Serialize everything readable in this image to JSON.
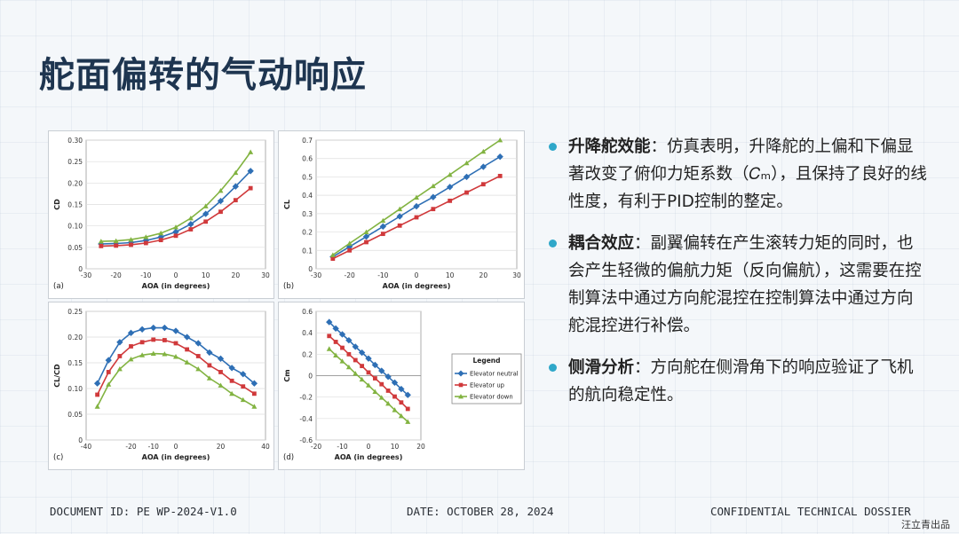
{
  "title": "舵面偏转的气动响应",
  "bullets": [
    {
      "head": "升降舵效能",
      "text": "：仿真表明，升降舵的上偏和下偏显著改变了俯仰力矩系数（𝐶ₘ），且保持了良好的线性度，有利于PID控制的整定。"
    },
    {
      "head": "耦合效应",
      "text": "：副翼偏转在产生滚转力矩的同时，也会产生轻微的偏航力矩（反向偏航），这需要在控制算法中通过方向舵混控在控制算法中通过方向舵混控进行补偿。"
    },
    {
      "head": "侧滑分析",
      "text": "：方向舵在侧滑角下的响应验证了飞机的航向稳定性。"
    }
  ],
  "footer": {
    "doc_id": "DOCUMENT ID: PE WP-2024-V1.0",
    "date": "DATE: OCTOBER 28, 2024",
    "confidential": "CONFIDENTIAL TECHNICAL DOSSIER"
  },
  "watermark": "汪立青出品",
  "colors": {
    "neutral": "#2e6fb5",
    "up": "#d0393b",
    "down": "#82b341",
    "bullet": "#2fa7c9"
  },
  "legend": {
    "title": "Legend",
    "items": [
      "Elevator neutral",
      "Elevator up",
      "Elevator down"
    ]
  },
  "chart_data": [
    {
      "type": "line",
      "panel_label": "(a)",
      "xlabel": "AOA (in degrees)",
      "ylabel": "CD",
      "xlim": [
        -30,
        30
      ],
      "ylim": [
        0,
        0.3
      ],
      "xticks": [
        -30,
        -20,
        -10,
        0,
        10,
        20,
        30
      ],
      "yticks": [
        0,
        0.05,
        0.1,
        0.15,
        0.2,
        0.25,
        0.3
      ],
      "x": [
        -25,
        -20,
        -15,
        -10,
        -5,
        0,
        5,
        10,
        15,
        20,
        25
      ],
      "series": [
        {
          "name": "Elevator neutral",
          "color": "#2e6fb5",
          "values": [
            0.058,
            0.059,
            0.061,
            0.066,
            0.074,
            0.086,
            0.104,
            0.128,
            0.158,
            0.192,
            0.228
          ]
        },
        {
          "name": "Elevator up",
          "color": "#d0393b",
          "values": [
            0.053,
            0.054,
            0.056,
            0.06,
            0.067,
            0.077,
            0.092,
            0.11,
            0.133,
            0.16,
            0.188
          ]
        },
        {
          "name": "Elevator down",
          "color": "#82b341",
          "values": [
            0.064,
            0.065,
            0.068,
            0.074,
            0.083,
            0.097,
            0.118,
            0.146,
            0.182,
            0.224,
            0.272
          ]
        }
      ]
    },
    {
      "type": "line",
      "panel_label": "(b)",
      "xlabel": "AOA (in degrees)",
      "ylabel": "CL",
      "xlim": [
        -30,
        30
      ],
      "ylim": [
        0,
        0.7
      ],
      "xticks": [
        -30,
        -20,
        -10,
        0,
        10,
        20,
        30
      ],
      "yticks": [
        0,
        0.1,
        0.2,
        0.3,
        0.4,
        0.5,
        0.6,
        0.7
      ],
      "x": [
        -25,
        -20,
        -15,
        -10,
        -5,
        0,
        5,
        10,
        15,
        20,
        25
      ],
      "series": [
        {
          "name": "Elevator neutral",
          "color": "#2e6fb5",
          "values": [
            0.065,
            0.12,
            0.175,
            0.23,
            0.285,
            0.34,
            0.39,
            0.445,
            0.5,
            0.555,
            0.61
          ]
        },
        {
          "name": "Elevator up",
          "color": "#d0393b",
          "values": [
            0.055,
            0.1,
            0.145,
            0.19,
            0.235,
            0.28,
            0.325,
            0.37,
            0.415,
            0.46,
            0.505
          ]
        },
        {
          "name": "Elevator down",
          "color": "#82b341",
          "values": [
            0.075,
            0.138,
            0.2,
            0.262,
            0.325,
            0.388,
            0.45,
            0.512,
            0.575,
            0.638,
            0.7
          ]
        }
      ]
    },
    {
      "type": "line",
      "panel_label": "(c)",
      "xlabel": "AOA (in degrees)",
      "ylabel": "CL/CD",
      "xlim": [
        -40,
        40
      ],
      "ylim": [
        0,
        0.25
      ],
      "xticks": [
        -40,
        -20,
        -10,
        0,
        20,
        40
      ],
      "yticks": [
        0,
        0.05,
        0.1,
        0.15,
        0.2,
        0.25
      ],
      "x": [
        -35,
        -30,
        -25,
        -20,
        -15,
        -10,
        -5,
        0,
        5,
        10,
        15,
        20,
        25,
        30,
        35
      ],
      "series": [
        {
          "name": "Elevator neutral",
          "color": "#2e6fb5",
          "values": [
            0.11,
            0.155,
            0.19,
            0.208,
            0.215,
            0.218,
            0.218,
            0.212,
            0.2,
            0.188,
            0.17,
            0.158,
            0.14,
            0.128,
            0.11
          ]
        },
        {
          "name": "Elevator up",
          "color": "#d0393b",
          "values": [
            0.088,
            0.132,
            0.163,
            0.182,
            0.19,
            0.195,
            0.194,
            0.188,
            0.176,
            0.163,
            0.145,
            0.132,
            0.115,
            0.104,
            0.09
          ]
        },
        {
          "name": "Elevator down",
          "color": "#82b341",
          "values": [
            0.065,
            0.108,
            0.138,
            0.157,
            0.165,
            0.168,
            0.167,
            0.162,
            0.151,
            0.138,
            0.12,
            0.106,
            0.09,
            0.078,
            0.065
          ]
        }
      ]
    },
    {
      "type": "line",
      "panel_label": "(d)",
      "xlabel": "AOA (in degrees)",
      "ylabel": "Cm",
      "xlim": [
        -20,
        20
      ],
      "ylim": [
        -0.6,
        0.6
      ],
      "xticks": [
        -20,
        -10,
        0,
        10,
        20
      ],
      "yticks": [
        -0.6,
        -0.4,
        -0.2,
        0,
        0.2,
        0.4,
        0.6
      ],
      "x": [
        -15,
        -12.5,
        -10,
        -7.5,
        -5,
        -2.5,
        0,
        2.5,
        5,
        7.5,
        10,
        12.5,
        15
      ],
      "series": [
        {
          "name": "Elevator neutral",
          "color": "#2e6fb5",
          "values": [
            0.5,
            0.44,
            0.385,
            0.33,
            0.27,
            0.215,
            0.16,
            0.1,
            0.045,
            -0.01,
            -0.065,
            -0.125,
            -0.18
          ]
        },
        {
          "name": "Elevator up",
          "color": "#d0393b",
          "values": [
            0.37,
            0.315,
            0.26,
            0.2,
            0.145,
            0.09,
            0.03,
            -0.025,
            -0.08,
            -0.14,
            -0.195,
            -0.25,
            -0.31
          ]
        },
        {
          "name": "Elevator down",
          "color": "#82b341",
          "values": [
            0.25,
            0.19,
            0.135,
            0.08,
            0.02,
            -0.035,
            -0.09,
            -0.15,
            -0.205,
            -0.26,
            -0.32,
            -0.375,
            -0.43
          ]
        }
      ]
    }
  ]
}
